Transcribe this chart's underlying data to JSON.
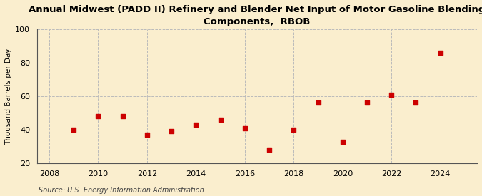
{
  "title": "Annual Midwest (PADD II) Refinery and Blender Net Input of Motor Gasoline Blending\nComponents,  RBOB",
  "ylabel": "Thousand Barrels per Day",
  "source": "Source: U.S. Energy Information Administration",
  "years": [
    2009,
    2010,
    2011,
    2012,
    2013,
    2014,
    2015,
    2016,
    2017,
    2018,
    2019,
    2020,
    2021,
    2022,
    2023,
    2024
  ],
  "values": [
    40,
    48,
    48,
    37,
    39,
    43,
    46,
    41,
    28,
    40,
    56,
    33,
    56,
    61,
    56,
    86
  ],
  "marker_color": "#cc0000",
  "marker": "s",
  "marker_size": 4,
  "xlim": [
    2007.5,
    2025.5
  ],
  "ylim": [
    20,
    100
  ],
  "yticks": [
    20,
    40,
    60,
    80,
    100
  ],
  "xticks": [
    2008,
    2010,
    2012,
    2014,
    2016,
    2018,
    2020,
    2022,
    2024
  ],
  "bg_color": "#faeece",
  "grid_color": "#bbbbbb",
  "title_fontsize": 9.5,
  "label_fontsize": 7.5,
  "tick_fontsize": 8,
  "source_fontsize": 7
}
